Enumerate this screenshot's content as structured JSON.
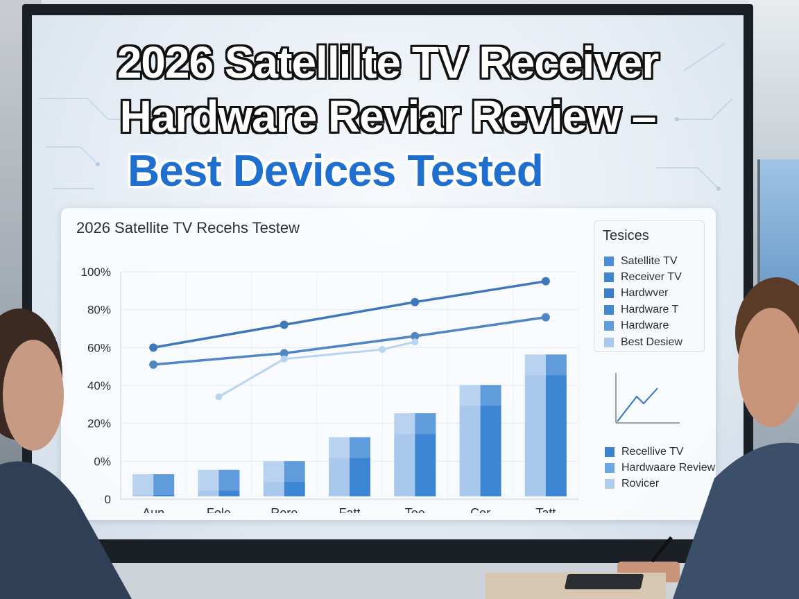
{
  "headline": {
    "line1": "2026 Satellilte TV Receiver",
    "line2": "Hardware Reviar Review –",
    "line3": "Best Devices Tested"
  },
  "chart_data": {
    "type": "bar",
    "title": "2026 Satellite TV Recehs Testew",
    "categories": [
      "Aun",
      "Fole",
      "Rore",
      "Fatt",
      "Tee",
      "Cer",
      "Tatt"
    ],
    "y_ticks": [
      "100%",
      "80%",
      "60%",
      "40%",
      "20%",
      "0%",
      "0"
    ],
    "bars": [
      7,
      9,
      13,
      24,
      35,
      48,
      62
    ],
    "lines": [
      {
        "x_index": [
          0,
          2,
          4,
          6
        ],
        "values": [
          60,
          72,
          84,
          95
        ],
        "color": "#3f78b8"
      },
      {
        "x_index": [
          0,
          2,
          4,
          6
        ],
        "values": [
          51,
          57,
          66,
          76
        ],
        "color": "#4f86c4"
      },
      {
        "x_index": [
          1,
          2,
          3.5,
          4
        ],
        "values": [
          34,
          54,
          59,
          63
        ],
        "color": "#b9d4ef"
      }
    ],
    "legend_title": "Tesices",
    "legend": [
      {
        "name": "Satellite TV",
        "color": "#4a8fd6"
      },
      {
        "name": "Receiver TV",
        "color": "#3f84cf"
      },
      {
        "name": "Hardwver",
        "color": "#3b7fcb"
      },
      {
        "name": "Hardware T",
        "color": "#4387d1"
      },
      {
        "name": "Hardware",
        "color": "#5f9ddd"
      },
      {
        "name": "Best Desiew",
        "color": "#a9c9ec"
      }
    ],
    "legend2": [
      {
        "name": "Recellive TV",
        "color": "#3d82cf"
      },
      {
        "name": "Hardwaare Review",
        "color": "#6ea6e0"
      },
      {
        "name": "Rovicer",
        "color": "#b0cdee"
      }
    ]
  },
  "colors": {
    "accent_blue": "#1f6fcf",
    "bar_dark": "#3d86d4",
    "bar_light": "#a9c8ec"
  }
}
